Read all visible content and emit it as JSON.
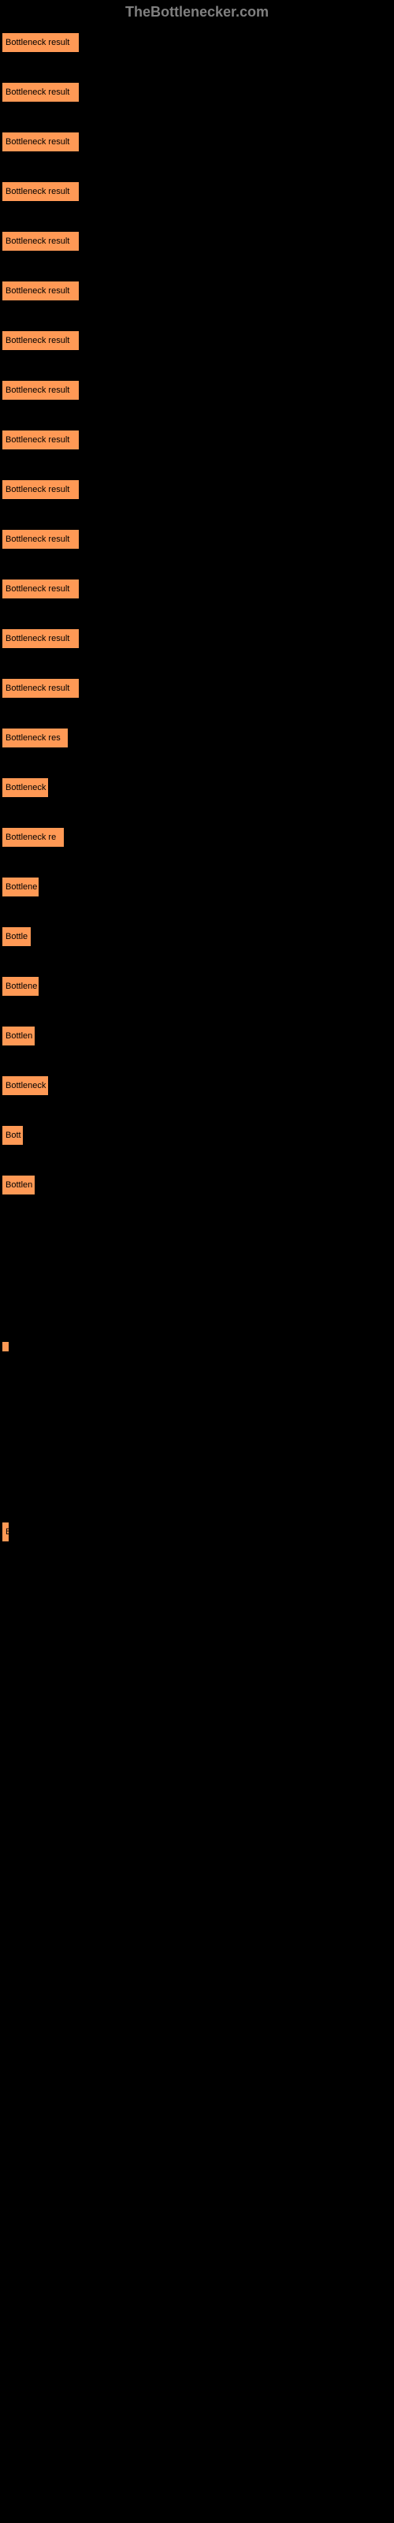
{
  "header": "TheBottlenecker.com",
  "chart": {
    "type": "bar",
    "bar_color": "#ff9955",
    "text_color": "#000000",
    "background_color": "#000000",
    "font_size": 11,
    "max_width": 99,
    "bars": [
      {
        "label": "Bottleneck result",
        "width": 99
      },
      {
        "label": "Bottleneck result",
        "width": 99
      },
      {
        "label": "Bottleneck result",
        "width": 99
      },
      {
        "label": "Bottleneck result",
        "width": 99
      },
      {
        "label": "Bottleneck result",
        "width": 99
      },
      {
        "label": "Bottleneck result",
        "width": 99
      },
      {
        "label": "Bottleneck result",
        "width": 99
      },
      {
        "label": "Bottleneck result",
        "width": 99
      },
      {
        "label": "Bottleneck result",
        "width": 99
      },
      {
        "label": "Bottleneck result",
        "width": 99
      },
      {
        "label": "Bottleneck result",
        "width": 99
      },
      {
        "label": "Bottleneck result",
        "width": 99
      },
      {
        "label": "Bottleneck result",
        "width": 99
      },
      {
        "label": "Bottleneck result",
        "width": 99
      },
      {
        "label": "Bottleneck res",
        "width": 85
      },
      {
        "label": "Bottleneck",
        "width": 60
      },
      {
        "label": "Bottleneck re",
        "width": 80
      },
      {
        "label": "Bottlene",
        "width": 48
      },
      {
        "label": "Bottle",
        "width": 38
      },
      {
        "label": "Bottlene",
        "width": 48
      },
      {
        "label": "Bottlen",
        "width": 43
      },
      {
        "label": "Bottleneck",
        "width": 60
      },
      {
        "label": "Bott",
        "width": 28
      },
      {
        "label": "Bottlen",
        "width": 43
      },
      {
        "label": "",
        "width": 6
      },
      {
        "label": "B",
        "width": 10
      }
    ],
    "special_spacing": {
      "24": 180,
      "25": 210
    }
  }
}
